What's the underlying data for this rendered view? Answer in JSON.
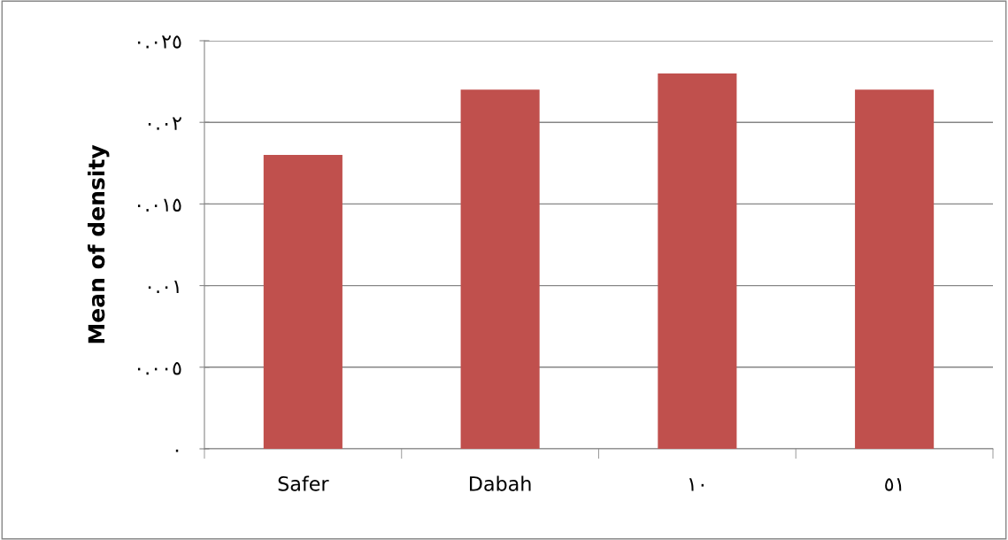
{
  "chart_data": {
    "type": "bar",
    "ylabel": "Mean of density",
    "categories": [
      "Safer",
      "Dabah",
      "١٠",
      "٥١"
    ],
    "values": [
      0.018,
      0.022,
      0.023,
      0.022
    ],
    "color": "#c0504d",
    "ylim": [
      0,
      0.025
    ],
    "yticks": [
      {
        "value": 0,
        "label": "٠"
      },
      {
        "value": 0.005,
        "label": "٠.٠٠٥"
      },
      {
        "value": 0.01,
        "label": "٠.٠١"
      },
      {
        "value": 0.015,
        "label": "٠.٠١٥"
      },
      {
        "value": 0.02,
        "label": "٠.٠٢"
      },
      {
        "value": 0.025,
        "label": "٠.٠٢٥"
      }
    ],
    "grid": "y"
  }
}
